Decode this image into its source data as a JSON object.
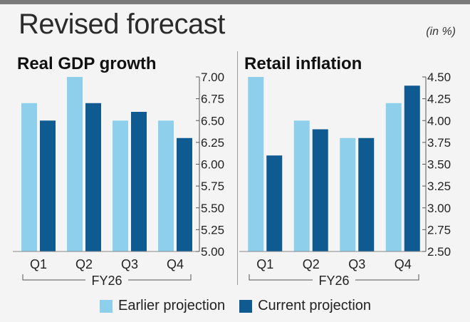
{
  "title": "Revised forecast",
  "unit_note": "(in %)",
  "legend": [
    {
      "label": "Earlier projection",
      "color": "#8ed0ec"
    },
    {
      "label": "Current projection",
      "color": "#0f5a91"
    }
  ],
  "chart_data": [
    {
      "type": "bar",
      "title": "Real GDP growth",
      "categories": [
        "Q1",
        "Q2",
        "Q3",
        "Q4"
      ],
      "group_label": "FY26",
      "ylim": [
        5.0,
        7.0
      ],
      "yticks": [
        "7.00",
        "6.75",
        "6.50",
        "6.25",
        "6.00",
        "5.75",
        "5.50",
        "5.25",
        "5.00"
      ],
      "series": [
        {
          "name": "Earlier projection",
          "values": [
            6.7,
            7.0,
            6.5,
            6.5
          ],
          "color": "#8ed0ec"
        },
        {
          "name": "Current projection",
          "values": [
            6.5,
            6.7,
            6.6,
            6.3
          ],
          "color": "#0f5a91"
        }
      ]
    },
    {
      "type": "bar",
      "title": "Retail inflation",
      "categories": [
        "Q1",
        "Q2",
        "Q3",
        "Q4"
      ],
      "group_label": "FY26",
      "ylim": [
        2.5,
        4.5
      ],
      "yticks": [
        "4.50",
        "4.25",
        "4.00",
        "3.75",
        "3.50",
        "3.25",
        "3.00",
        "2.75",
        "2.50"
      ],
      "series": [
        {
          "name": "Earlier projection",
          "values": [
            4.5,
            4.0,
            3.8,
            4.2
          ],
          "color": "#8ed0ec"
        },
        {
          "name": "Current projection",
          "values": [
            3.6,
            3.9,
            3.8,
            4.4
          ],
          "color": "#0f5a91"
        }
      ]
    }
  ]
}
